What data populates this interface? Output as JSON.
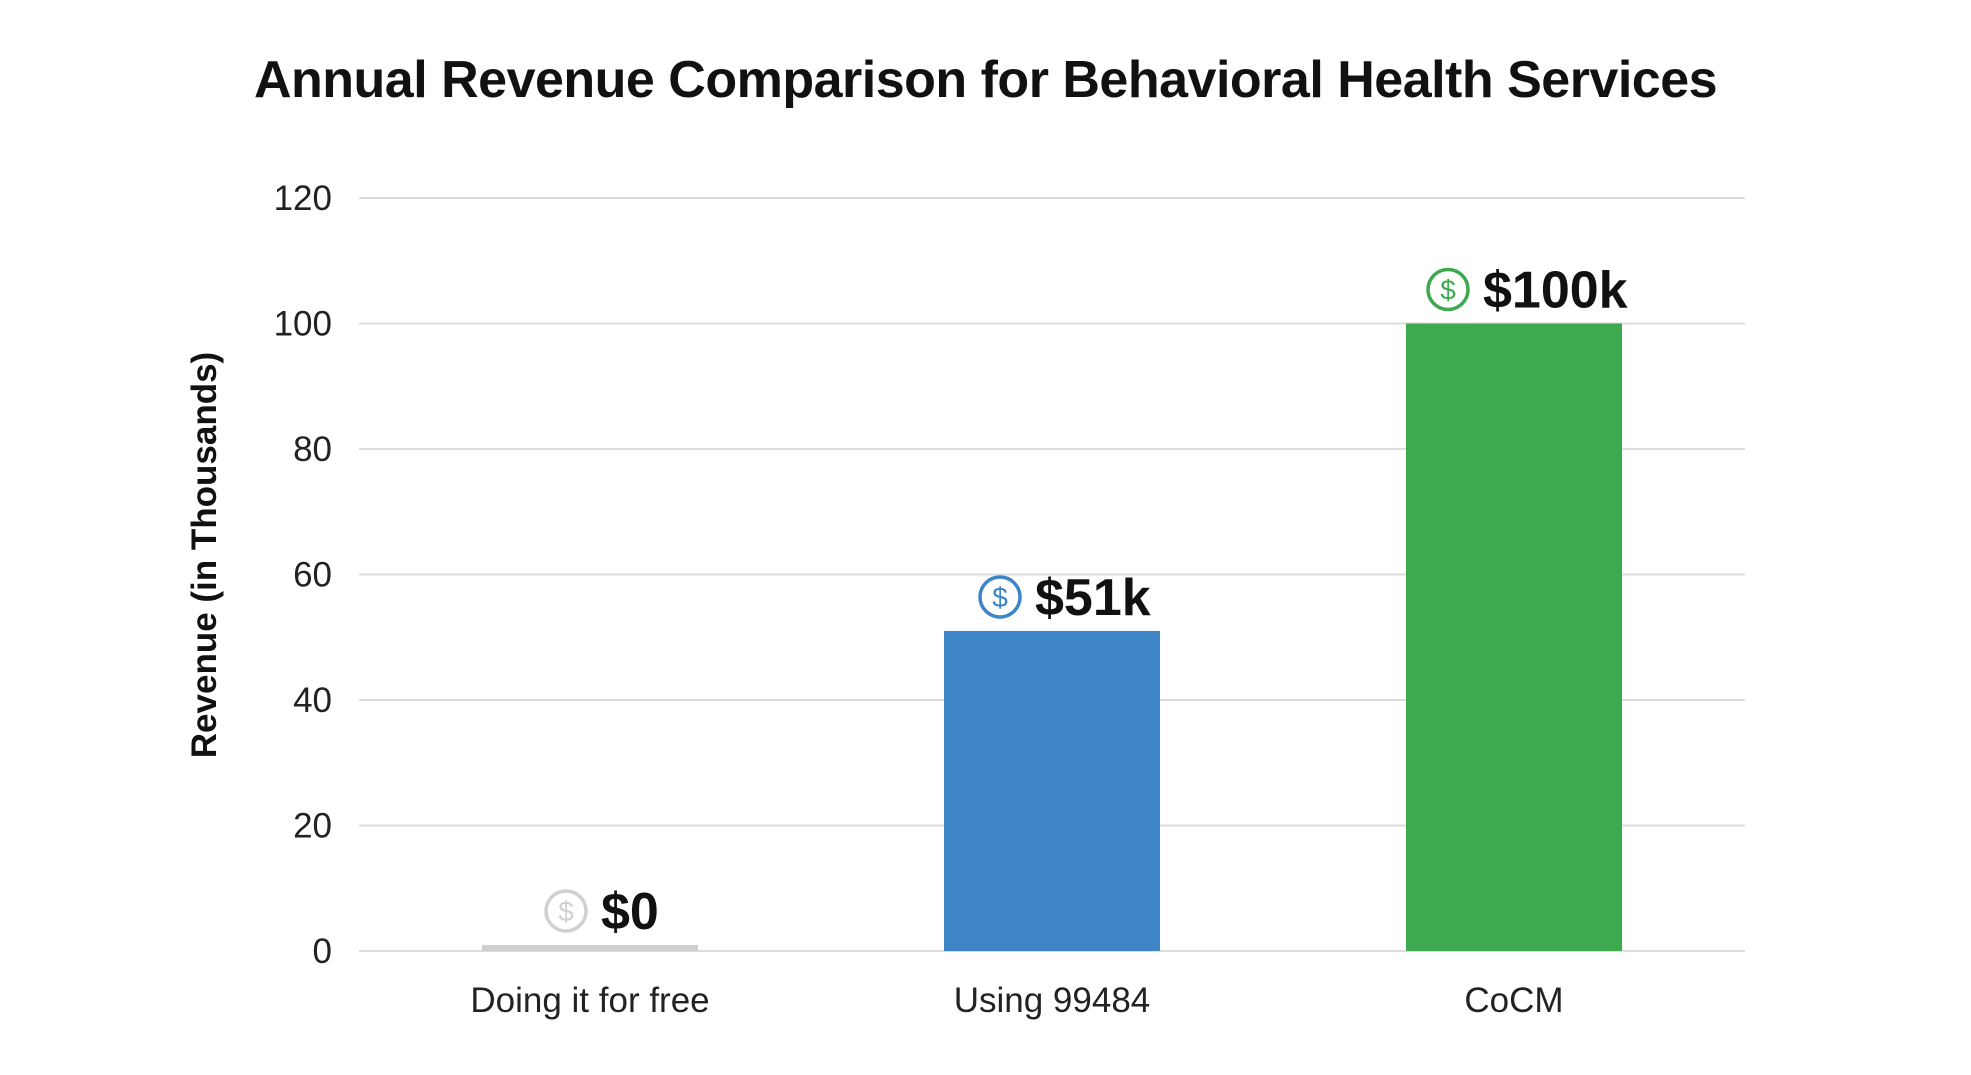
{
  "chart_data": {
    "type": "bar",
    "title": "Annual Revenue Comparison for Behavioral Health Services",
    "xlabel": "",
    "ylabel": "Revenue (in Thousands)",
    "ylim": [
      0,
      120
    ],
    "yticks": [
      0,
      20,
      40,
      60,
      80,
      100,
      120
    ],
    "grid": true,
    "categories": [
      "Doing it for free",
      "Using 99484",
      "CoCM"
    ],
    "values": [
      0,
      51,
      100
    ],
    "data_labels": [
      "$0",
      "$51k",
      "$100k"
    ],
    "colors": [
      "#cfcfcf",
      "#3d85c6",
      "#3daa4f"
    ],
    "label_icon": "dollar-circle-icon",
    "icon_colors": [
      "#d0d0d0",
      "#3d85c6",
      "#3daa4f"
    ]
  }
}
